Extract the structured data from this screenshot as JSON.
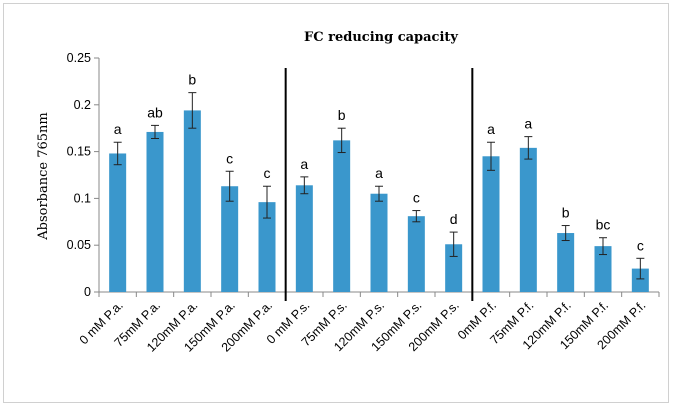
{
  "chart_data": {
    "type": "bar",
    "title": "FC reducing capacity",
    "xlabel": "",
    "ylabel": "Absorbance 765nm",
    "ylim": [
      0,
      0.25
    ],
    "yticks": [
      "0",
      "0.05",
      "0.1",
      "0.15",
      "0.2",
      "0.25"
    ],
    "grid": false,
    "legend": "none",
    "bar_color": "#3a97cc",
    "categories": [
      "0 mM P.a.",
      "75mM P.a.",
      "120mM P.a.",
      "150mM P.a.",
      "200mM P.a.",
      "0 mM P.s.",
      "75mM P.s.",
      "120mM P.s.",
      "150mM P.s.",
      "200mM P.s.",
      "0mM P.f.",
      "75mM P.f.",
      "120mM P.f.",
      "150mM P.f.",
      "200mM P.f."
    ],
    "values": [
      0.148,
      0.171,
      0.194,
      0.113,
      0.096,
      0.114,
      0.162,
      0.105,
      0.081,
      0.051,
      0.145,
      0.154,
      0.063,
      0.049,
      0.025
    ],
    "errors": [
      0.012,
      0.007,
      0.019,
      0.016,
      0.017,
      0.009,
      0.013,
      0.008,
      0.006,
      0.013,
      0.015,
      0.012,
      0.008,
      0.009,
      0.011
    ],
    "significance": [
      "a",
      "ab",
      "b",
      "c",
      "c",
      "a",
      "b",
      "a",
      "c",
      "d",
      "a",
      "a",
      "b",
      "bc",
      "c"
    ],
    "group_separators_after": [
      5,
      10
    ]
  }
}
